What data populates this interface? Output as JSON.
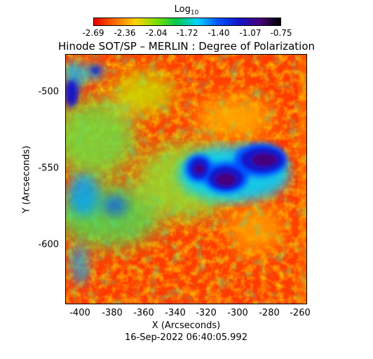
{
  "colorbar": {
    "title": "Log",
    "title_sub": "10",
    "tick_labels": [
      "-2.69",
      "-2.36",
      "-2.04",
      "-1.72",
      "-1.40",
      "-1.07",
      "-0.75"
    ],
    "colors": [
      "#e60000",
      "#ff6a00",
      "#ffd200",
      "#7fe000",
      "#00c850",
      "#00d2ff",
      "#0050ff",
      "#1414c8",
      "#46007d",
      "#000000"
    ]
  },
  "title": "Hinode SOT/SP – MERLIN : Degree of Polarization",
  "axes": {
    "xlabel": "X (Arcseconds)",
    "ylabel": "Y (Arcseconds)",
    "xticks": [
      "-400",
      "-380",
      "-360",
      "-340",
      "-320",
      "-300",
      "-280",
      "-260"
    ],
    "yticks": [
      "-500",
      "-550",
      "-600"
    ]
  },
  "timestamp": "16-Sep-2022 06:40:05.992"
}
